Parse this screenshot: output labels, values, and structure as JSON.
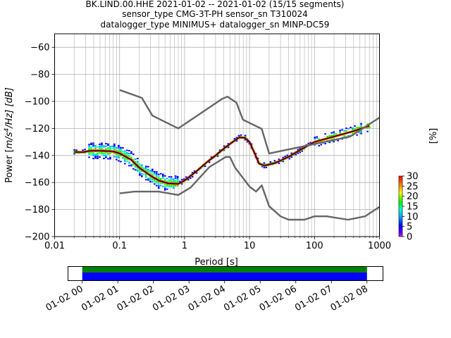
{
  "title_lines": [
    "BK.LIND.00.HHE   2021-01-02 -- 2021-01-02  (15/15 segments)",
    "sensor_type CMG-3T-PH sensor_sn T310024",
    "datalogger_type MINIMUS+ datalogger_sn MINP-DC59"
  ],
  "chart_data": [
    {
      "type": "heatmap",
      "x_scale": "log",
      "xlabel": "Period [s]",
      "ylabel": "Power [m²/s⁴/Hz] [dB]",
      "ylabel_parts": {
        "prefix": "Power [",
        "m": "m",
        "s4_base": "/s",
        "s4_exp": "4",
        "rest": "/Hz] [dB]"
      },
      "xlim": [
        0.01,
        1000
      ],
      "ylim": [
        -200,
        -50
      ],
      "x_ticks": [
        0.01,
        0.1,
        1,
        10,
        100,
        1000
      ],
      "x_tick_labels": [
        "0.01",
        "0.1",
        "1",
        "10",
        "100",
        "1000"
      ],
      "y_ticks": [
        -200,
        -180,
        -160,
        -140,
        -120,
        -100,
        -80,
        -60
      ],
      "y_tick_labels": [
        "−200",
        "−180",
        "−160",
        "−140",
        "−120",
        "−100",
        "−80",
        "−60"
      ],
      "grid": true,
      "colorbar": {
        "label": "[%]",
        "range": [
          0,
          30
        ],
        "ticks": [
          0,
          5,
          10,
          15,
          20,
          25,
          30
        ],
        "tick_labels": [
          "0",
          "5",
          "10",
          "15",
          "20",
          "25",
          "30"
        ]
      },
      "noise_model_high": [
        [
          0.1,
          -91.5
        ],
        [
          0.22,
          -97.4
        ],
        [
          0.32,
          -110.5
        ],
        [
          0.8,
          -120.0
        ],
        [
          3.8,
          -98.0
        ],
        [
          4.6,
          -96.5
        ],
        [
          6.3,
          -101.0
        ],
        [
          7.9,
          -113.5
        ],
        [
          15.4,
          -120.3
        ],
        [
          20.0,
          -138.5
        ],
        [
          354.8,
          -126.0
        ],
        [
          1000,
          -112.0
        ]
      ],
      "noise_model_low": [
        [
          0.1,
          -168.0
        ],
        [
          0.17,
          -166.7
        ],
        [
          0.4,
          -166.7
        ],
        [
          0.8,
          -169.2
        ],
        [
          1.24,
          -163.7
        ],
        [
          2.4,
          -148.6
        ],
        [
          4.3,
          -141.1
        ],
        [
          5.0,
          -141.1
        ],
        [
          6.0,
          -149.0
        ],
        [
          10.0,
          -163.0
        ],
        [
          12.6,
          -166.7
        ],
        [
          15.4,
          -162.1
        ],
        [
          20.0,
          -177.5
        ],
        [
          30.0,
          -185.0
        ],
        [
          40.0,
          -187.5
        ],
        [
          70.0,
          -187.5
        ],
        [
          100.0,
          -185.0
        ],
        [
          154.5,
          -185.0
        ],
        [
          328.4,
          -187.5
        ],
        [
          600.0,
          -185.0
        ],
        [
          1000.0,
          -178.0
        ]
      ],
      "psd_mean_curve": [
        [
          0.02,
          -137.5
        ],
        [
          0.028,
          -137.5
        ],
        [
          0.035,
          -136.5
        ],
        [
          0.05,
          -136.5
        ],
        [
          0.08,
          -137.0
        ],
        [
          0.1,
          -138.5
        ],
        [
          0.15,
          -143.0
        ],
        [
          0.2,
          -149.0
        ],
        [
          0.3,
          -155.0
        ],
        [
          0.4,
          -158.5
        ],
        [
          0.55,
          -160.5
        ],
        [
          0.8,
          -161.0
        ],
        [
          1.0,
          -158.5
        ],
        [
          1.5,
          -152.0
        ],
        [
          2.2,
          -145.0
        ],
        [
          3.0,
          -140.0
        ],
        [
          4.0,
          -135.0
        ],
        [
          5.5,
          -130.0
        ],
        [
          7.0,
          -126.5
        ],
        [
          8.5,
          -127.0
        ],
        [
          10.0,
          -130.0
        ],
        [
          12.0,
          -138.5
        ],
        [
          14.0,
          -146.0
        ],
        [
          17.0,
          -147.5
        ],
        [
          25.0,
          -145.5
        ],
        [
          40.0,
          -141.0
        ],
        [
          60.0,
          -136.0
        ],
        [
          100.0,
          -130.0
        ],
        [
          200.0,
          -126.0
        ],
        [
          400.0,
          -122.0
        ],
        [
          700.0,
          -118.0
        ]
      ]
    },
    {
      "type": "timeline",
      "x_tick_labels": [
        "01-02 00",
        "01-02 01",
        "01-02 02",
        "01-02 03",
        "01-02 04",
        "01-02 05",
        "01-02 06",
        "01-02 07",
        "01-02 08"
      ],
      "x_hours": [
        0,
        1,
        2,
        3,
        4,
        5,
        6,
        7,
        8
      ],
      "xlim_hours": [
        -0.4,
        8.45
      ],
      "data_coverage_hours": [
        0.0,
        8.0
      ],
      "coverage_colors": {
        "upper": "#008000",
        "lower": "#0000ff"
      }
    }
  ]
}
